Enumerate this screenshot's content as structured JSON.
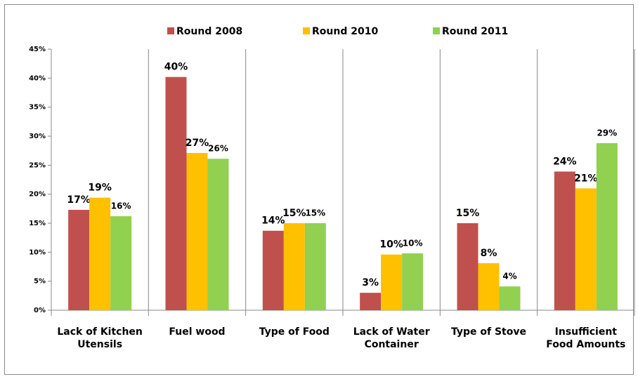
{
  "chart_data": {
    "type": "bar",
    "categories": [
      "Lack of Kitchen Utensils",
      "Fuel wood",
      "Type of Food",
      "Lack of Water Container",
      "Type of Stove",
      "Insufficient Food Amounts"
    ],
    "series": [
      {
        "name": "Round 2008",
        "color": "#c0504d",
        "values": [
          17.3,
          40.2,
          13.7,
          3,
          15,
          23.9
        ],
        "value_labels": [
          "17%",
          "40%",
          "14%",
          "3%",
          "15%",
          "24%"
        ]
      },
      {
        "name": "Round 2010",
        "color": "#ffc000",
        "values": [
          19.4,
          27.1,
          15,
          9.6,
          8.1,
          21
        ],
        "value_labels": [
          "19%",
          "27%",
          "15%",
          "10%",
          "8%",
          "21%"
        ]
      },
      {
        "name": "Round 2011",
        "color": "#92d050",
        "values": [
          16.2,
          26.1,
          15,
          9.8,
          4.1,
          28.8
        ],
        "value_labels": [
          "16%",
          "26%",
          "15%",
          "10%",
          "4%",
          "29%"
        ]
      }
    ],
    "ylim": [
      0,
      45
    ],
    "yticks": [
      {
        "value": 0,
        "label": "0%"
      },
      {
        "value": 5,
        "label": "5%"
      },
      {
        "value": 10,
        "label": "10%"
      },
      {
        "value": 15,
        "label": "15%"
      },
      {
        "value": 20,
        "label": "20%"
      },
      {
        "value": 25,
        "label": "25%"
      },
      {
        "value": 30,
        "label": "30%"
      },
      {
        "value": 35,
        "label": "35%"
      },
      {
        "value": 40,
        "label": "40%"
      },
      {
        "value": 45,
        "label": "45%"
      }
    ],
    "legend": "top"
  }
}
